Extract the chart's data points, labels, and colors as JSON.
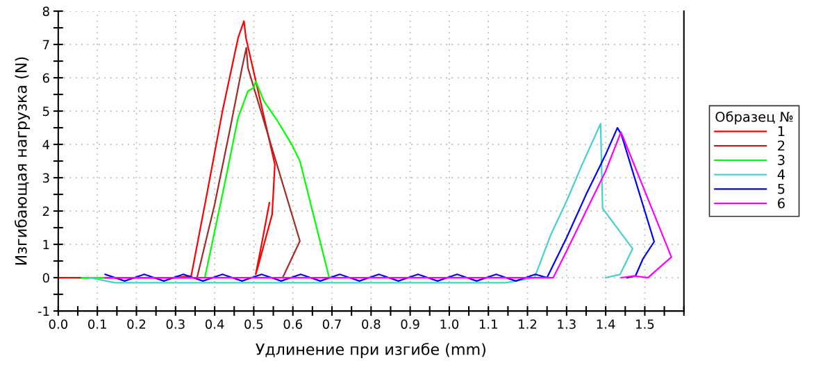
{
  "chart_data": {
    "type": "line",
    "xlabel": "Удлинение при изгибе (mm)",
    "ylabel": "Изгибающая нагрузка (N)",
    "legend_title": "Образец №",
    "legend": "right",
    "grid": true,
    "line_style": "solid",
    "xlim": [
      0,
      1.6
    ],
    "ylim": [
      -1,
      8
    ],
    "xticks": [
      {
        "value": 0,
        "label": "0.0"
      },
      {
        "value": 0.05,
        "label": null
      },
      0.1,
      {
        "value": 0.15,
        "label": null
      },
      0.2,
      {
        "value": 0.25,
        "label": null
      },
      0.3,
      {
        "value": 0.35,
        "label": null
      },
      0.4,
      {
        "value": 0.45,
        "label": null
      },
      0.5,
      {
        "value": 0.55,
        "label": null
      },
      0.6,
      {
        "value": 0.65,
        "label": null
      },
      0.7,
      {
        "value": 0.75,
        "label": null
      },
      0.8,
      {
        "value": 0.85,
        "label": null
      },
      0.9,
      {
        "value": 0.95,
        "label": null
      },
      {
        "value": 1,
        "label": "1.0"
      },
      {
        "value": 1.05,
        "label": null
      },
      1.1,
      {
        "value": 1.15,
        "label": null
      },
      1.2,
      {
        "value": 1.25,
        "label": null
      },
      1.3,
      {
        "value": 1.35,
        "label": null
      },
      1.4,
      {
        "value": 1.45,
        "label": null
      },
      1.5,
      {
        "value": 1.55,
        "label": null
      },
      {
        "value": 1.6,
        "label": null
      }
    ],
    "yticks": [
      -1,
      {
        "value": -0.5,
        "label": null
      },
      0,
      {
        "value": 0.5,
        "label": null
      },
      1,
      {
        "value": 1.5,
        "label": null
      },
      2,
      {
        "value": 2.5,
        "label": null
      },
      3,
      {
        "value": 3.5,
        "label": null
      },
      4,
      {
        "value": 4.5,
        "label": null
      },
      5,
      {
        "value": 5.5,
        "label": null
      },
      6,
      {
        "value": 6.5,
        "label": null
      },
      7,
      {
        "value": 7.5,
        "label": null
      },
      8
    ],
    "series": [
      {
        "name": "1",
        "color": "#ff0000",
        "x": [
          0,
          0.05,
          0.1,
          0.2,
          0.3,
          0.34,
          0.38,
          0.42,
          0.46,
          0.475,
          0.48,
          0.554,
          0.547,
          0.51,
          0.505,
          0.52,
          0.54
        ],
        "values": [
          0,
          0,
          0,
          0,
          0,
          0.05,
          2.5,
          5,
          7.2,
          7.7,
          7.2,
          3.4,
          1.9,
          0.3,
          0.1,
          1,
          2.25
        ]
      },
      {
        "name": "2",
        "color": "#a52a2a",
        "x": [
          0.03,
          0.1,
          0.2,
          0.3,
          0.355,
          0.4,
          0.44,
          0.47,
          0.481,
          0.485,
          0.618,
          0.574,
          0.6
        ],
        "values": [
          0,
          0,
          0,
          0,
          0,
          2.2,
          4.5,
          6.3,
          6.9,
          6.3,
          1.1,
          0,
          0
        ]
      },
      {
        "name": "3",
        "color": "#00ff00",
        "x": [
          0.06,
          0.2,
          0.3,
          0.375,
          0.42,
          0.46,
          0.485,
          0.5,
          0.505,
          0.526,
          0.561,
          0.597,
          0.618,
          0.693
        ],
        "values": [
          0,
          0,
          0,
          0,
          2.5,
          4.8,
          5.6,
          5.7,
          5.9,
          5.3,
          4.7,
          4.0,
          3.5,
          0
        ]
      },
      {
        "name": "4",
        "color": "#48d1cc",
        "x": [
          0.08,
          0.145,
          0.245,
          0.345,
          0.445,
          0.545,
          0.645,
          0.745,
          0.845,
          0.945,
          1.045,
          1.145,
          1.218,
          1.26,
          1.3,
          1.34,
          1.387,
          1.392,
          1.469,
          1.437,
          1.4
        ],
        "values": [
          0,
          -0.15,
          -0.15,
          -0.15,
          -0.15,
          -0.15,
          -0.15,
          -0.15,
          -0.15,
          -0.15,
          -0.15,
          -0.15,
          0,
          1.3,
          2.3,
          3.4,
          4.62,
          2.08,
          0.87,
          0.1,
          0
        ]
      },
      {
        "name": "5",
        "color": "#0000ff",
        "x": [
          0.12,
          0.17,
          0.22,
          0.27,
          0.32,
          0.37,
          0.42,
          0.47,
          0.52,
          0.57,
          0.62,
          0.67,
          0.72,
          0.77,
          0.82,
          0.87,
          0.92,
          0.97,
          1.02,
          1.07,
          1.12,
          1.17,
          1.22,
          1.25,
          1.3,
          1.35,
          1.4,
          1.43,
          1.44,
          1.524,
          1.495,
          1.476,
          1.455
        ],
        "values": [
          0.1,
          -0.1,
          0.1,
          -0.1,
          0.1,
          -0.1,
          0.1,
          -0.1,
          0.1,
          -0.1,
          0.1,
          -0.1,
          0.1,
          -0.1,
          0.1,
          -0.1,
          0.1,
          -0.1,
          0.1,
          -0.1,
          0.1,
          -0.1,
          0.1,
          0,
          1.2,
          2.5,
          3.7,
          4.5,
          4.3,
          1.08,
          0.56,
          0.05,
          0
        ]
      },
      {
        "name": "6",
        "color": "#ff00ff",
        "x": [
          0.12,
          0.4,
          0.7,
          1.0,
          1.266,
          1.3,
          1.35,
          1.4,
          1.439,
          1.445,
          1.568,
          1.508,
          1.472,
          1.44
        ],
        "values": [
          0,
          0,
          0,
          0,
          0,
          0.8,
          2.0,
          3.2,
          4.37,
          4.2,
          0.62,
          0,
          0.05,
          0
        ]
      }
    ]
  }
}
